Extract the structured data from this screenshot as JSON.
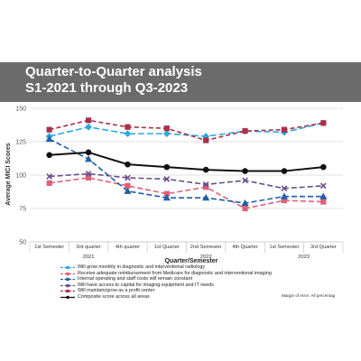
{
  "title": {
    "line1": "Quarter-to-Quarter analysis",
    "line2": "S1-2021 through Q3-2023"
  },
  "footnote": "Margin of error: All percentag",
  "colors": {
    "title_band": "#6b6b6b",
    "grid": "#d9d9d9",
    "axis_text": "#555555"
  },
  "chart_data": {
    "type": "line",
    "title": "",
    "xlabel": "Quarter/Semester",
    "ylabel": "Average MICI Scores",
    "ylim": [
      50,
      150
    ],
    "yticks": [
      50,
      75,
      100,
      125,
      150
    ],
    "grid": "horizontal",
    "legend_position": "bottom",
    "categories": [
      "1st Semester",
      "3rd quarter",
      "4th quarter",
      "1st Quarter",
      "2nd Semester",
      "4th Quarter",
      "1st Semester",
      "3rd Quarter"
    ],
    "year_groups": [
      {
        "label": "2021",
        "start": 0,
        "end": 2
      },
      {
        "label": "2022",
        "start": 3,
        "end": 5
      },
      {
        "label": "2023",
        "start": 6,
        "end": 7
      }
    ],
    "series": [
      {
        "name": "Will grow monthly in diagnostic and interventional radiology",
        "color": "#2aa8e0",
        "marker": "diamond",
        "dash": "7 3",
        "values": [
          129,
          136,
          131,
          131,
          129,
          133,
          132,
          139
        ]
      },
      {
        "name": "Receive adequate reimbursement from Medicare for diagnostic and interventional imaging",
        "color": "#e0607a",
        "marker": "square",
        "dash": "6 3",
        "values": [
          94,
          98,
          92,
          86,
          91,
          75,
          81,
          80
        ]
      },
      {
        "name": "Internal operating and staff costs will remain constant",
        "color": "#1f5fa8",
        "marker": "triangle",
        "dash": "6 3",
        "values": [
          127,
          112,
          88,
          83,
          83,
          79,
          84,
          84
        ]
      },
      {
        "name": "Will have access to capital for imaging equipment and IT needs",
        "color": "#6a4c8c",
        "marker": "x",
        "dash": "6 3",
        "values": [
          99,
          101,
          98,
          97,
          93,
          96,
          90,
          92
        ]
      },
      {
        "name": "Will maintain/grow as a profit center",
        "color": "#a8304a",
        "marker": "square",
        "dash": "5 3",
        "values": [
          134,
          141,
          136,
          135,
          126,
          133,
          134,
          139
        ]
      },
      {
        "name": "Composite score across all areas",
        "color": "#111111",
        "marker": "circle",
        "dash": "",
        "values": [
          115,
          117,
          108,
          106,
          104,
          103,
          103,
          106
        ]
      }
    ]
  }
}
